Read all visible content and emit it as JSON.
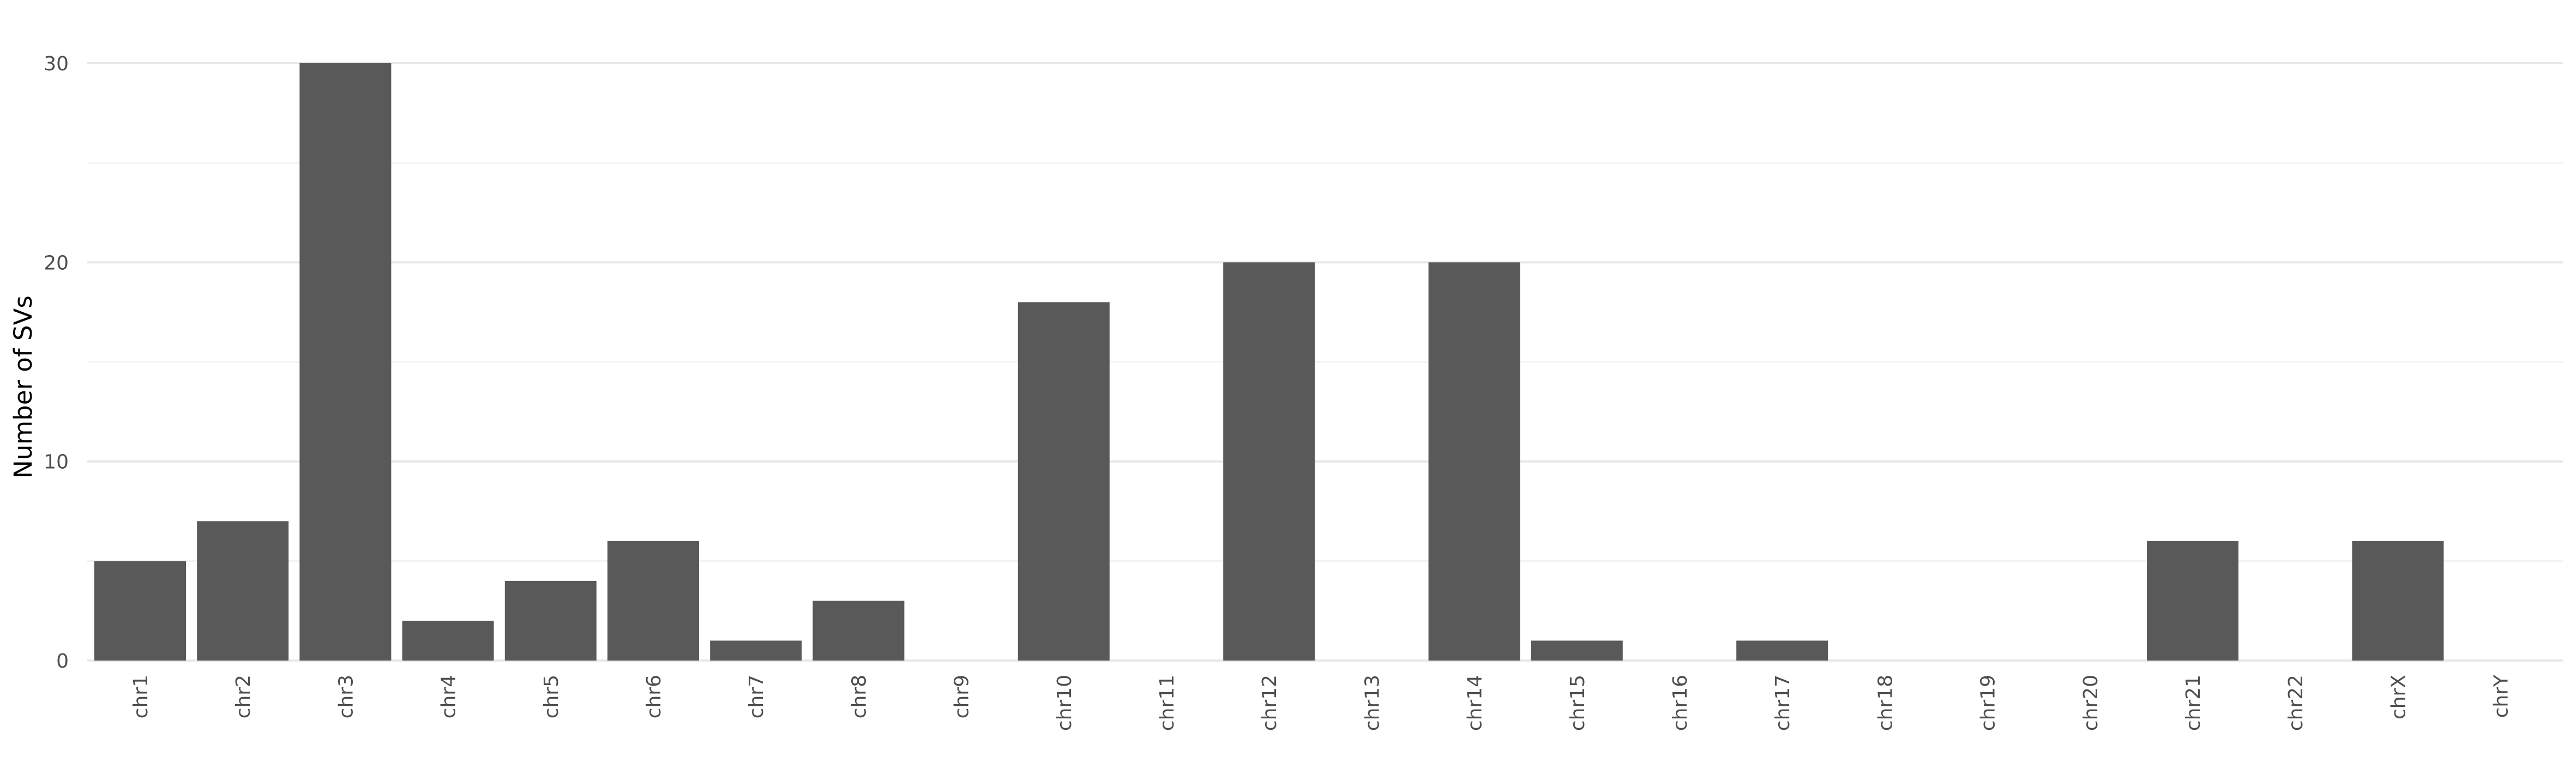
{
  "chart_data": {
    "type": "bar",
    "title": "",
    "xlabel": "",
    "ylabel": "Number of SVs",
    "categories": [
      "chr1",
      "chr2",
      "chr3",
      "chr4",
      "chr5",
      "chr6",
      "chr7",
      "chr8",
      "chr9",
      "chr10",
      "chr11",
      "chr12",
      "chr13",
      "chr14",
      "chr15",
      "chr16",
      "chr17",
      "chr18",
      "chr19",
      "chr20",
      "chr21",
      "chr22",
      "chrX",
      "chrY"
    ],
    "values": [
      5,
      7,
      30,
      2,
      4,
      6,
      1,
      3,
      0,
      18,
      0,
      20,
      0,
      20,
      1,
      0,
      1,
      0,
      0,
      0,
      6,
      0,
      6,
      0
    ],
    "ylim": [
      0,
      30
    ],
    "yticks": [
      0,
      10,
      20,
      30
    ],
    "grid": true,
    "legend": "none",
    "colors": {
      "bar": "#595959",
      "grid_major": "#e8e8e8",
      "grid_minor": "#f3f3f3"
    }
  }
}
